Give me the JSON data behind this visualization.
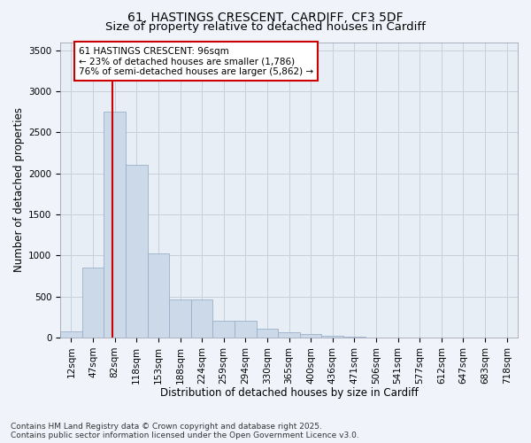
{
  "title_line1": "61, HASTINGS CRESCENT, CARDIFF, CF3 5DF",
  "title_line2": "Size of property relative to detached houses in Cardiff",
  "xlabel": "Distribution of detached houses by size in Cardiff",
  "ylabel": "Number of detached properties",
  "categories": [
    "12sqm",
    "47sqm",
    "82sqm",
    "118sqm",
    "153sqm",
    "188sqm",
    "224sqm",
    "259sqm",
    "294sqm",
    "330sqm",
    "365sqm",
    "400sqm",
    "436sqm",
    "471sqm",
    "506sqm",
    "541sqm",
    "577sqm",
    "612sqm",
    "647sqm",
    "683sqm",
    "718sqm"
  ],
  "values": [
    75,
    850,
    2750,
    2100,
    1030,
    460,
    460,
    200,
    200,
    105,
    65,
    40,
    20,
    10,
    5,
    3,
    2,
    1,
    1,
    0,
    0
  ],
  "bar_color": "#ccd9e8",
  "bar_edge_color": "#9ab0c8",
  "vline_x_index": 2.4,
  "vline_color": "#cc0000",
  "annotation_text_line1": "61 HASTINGS CRESCENT: 96sqm",
  "annotation_text_line2": "← 23% of detached houses are smaller (1,786)",
  "annotation_text_line3": "76% of semi-detached houses are larger (5,862) →",
  "annotation_box_color": "#cc0000",
  "ylim": [
    0,
    3600
  ],
  "yticks": [
    0,
    500,
    1000,
    1500,
    2000,
    2500,
    3000,
    3500
  ],
  "grid_color": "#c8d0dc",
  "plot_bg_color": "#e8eef6",
  "fig_bg_color": "#f0f4fa",
  "footer_text": "Contains HM Land Registry data © Crown copyright and database right 2025.\nContains public sector information licensed under the Open Government Licence v3.0.",
  "title_fontsize": 10,
  "subtitle_fontsize": 9.5,
  "axis_label_fontsize": 8.5,
  "tick_fontsize": 7.5,
  "annotation_fontsize": 7.5,
  "footer_fontsize": 6.5
}
